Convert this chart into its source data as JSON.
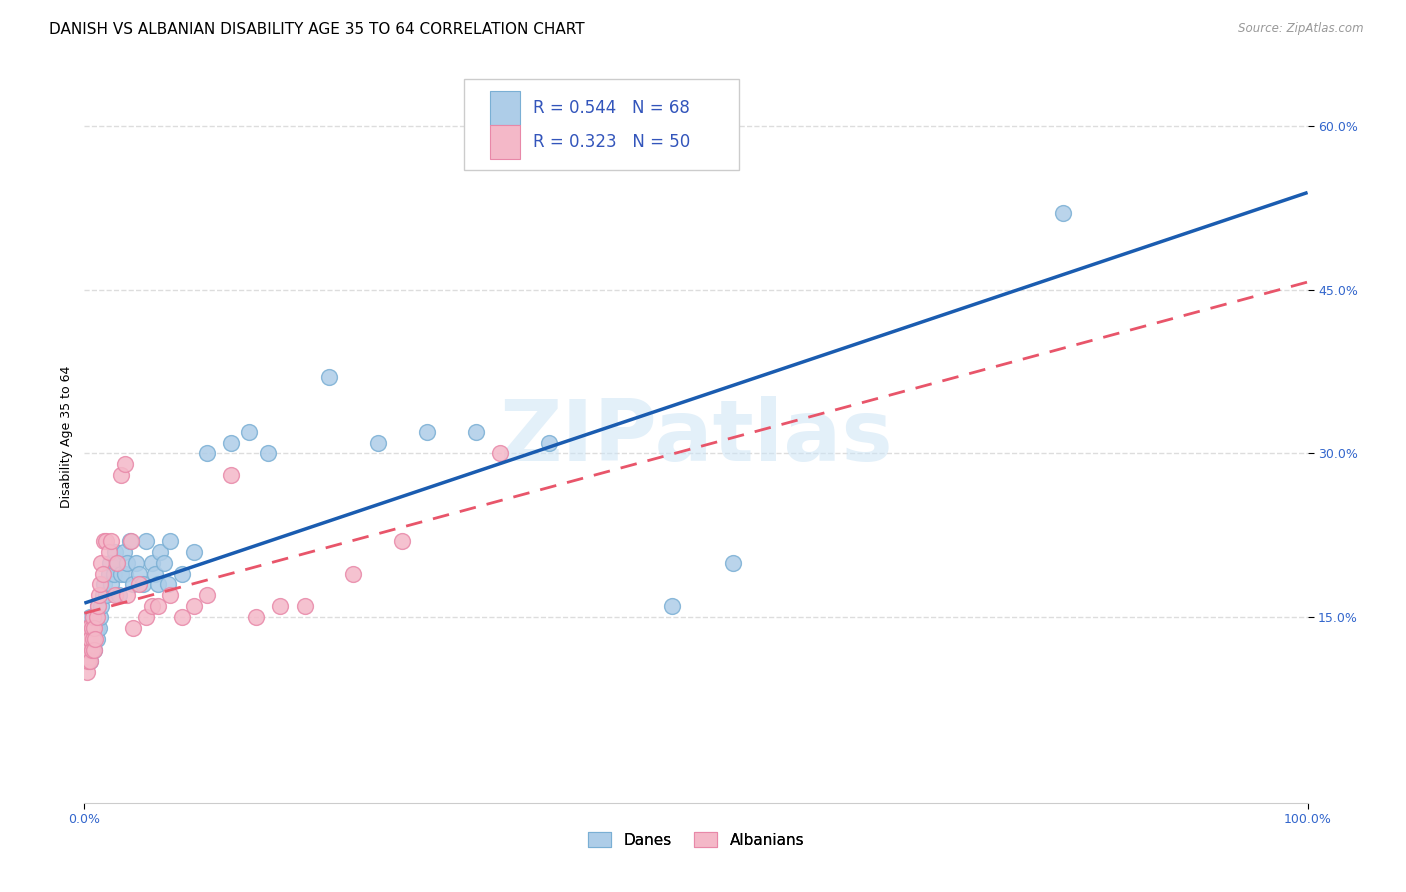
{
  "title": "DANISH VS ALBANIAN DISABILITY AGE 35 TO 64 CORRELATION CHART",
  "source": "Source: ZipAtlas.com",
  "ylabel": "Disability Age 35 to 64",
  "watermark": "ZIPatlas",
  "xlim": [
    0.0,
    1.0
  ],
  "ylim": [
    -0.02,
    0.65
  ],
  "ytick_values": [
    0.15,
    0.3,
    0.45,
    0.6
  ],
  "danes_color": "#aecde8",
  "danes_edge_color": "#7aafd4",
  "albanians_color": "#f4b8c8",
  "albanians_edge_color": "#e888a8",
  "danes_line_color": "#1a5cb0",
  "albanians_line_color": "#e8556a",
  "legend_danes_color": "#aecde8",
  "legend_albanians_color": "#f4b8c8",
  "R_danes": 0.544,
  "N_danes": 68,
  "R_albanians": 0.323,
  "N_albanians": 50,
  "danes_x": [
    0.001,
    0.001,
    0.002,
    0.002,
    0.002,
    0.003,
    0.003,
    0.003,
    0.004,
    0.004,
    0.004,
    0.005,
    0.005,
    0.005,
    0.006,
    0.006,
    0.007,
    0.007,
    0.008,
    0.008,
    0.009,
    0.01,
    0.01,
    0.011,
    0.012,
    0.013,
    0.014,
    0.015,
    0.016,
    0.018,
    0.02,
    0.021,
    0.022,
    0.024,
    0.025,
    0.027,
    0.028,
    0.03,
    0.032,
    0.033,
    0.035,
    0.037,
    0.04,
    0.042,
    0.045,
    0.048,
    0.05,
    0.055,
    0.058,
    0.06,
    0.062,
    0.065,
    0.068,
    0.07,
    0.08,
    0.09,
    0.1,
    0.12,
    0.135,
    0.15,
    0.2,
    0.24,
    0.28,
    0.32,
    0.38,
    0.48,
    0.53,
    0.8
  ],
  "danes_y": [
    0.12,
    0.14,
    0.13,
    0.12,
    0.14,
    0.11,
    0.13,
    0.14,
    0.12,
    0.13,
    0.14,
    0.11,
    0.13,
    0.15,
    0.12,
    0.14,
    0.13,
    0.15,
    0.12,
    0.14,
    0.15,
    0.13,
    0.14,
    0.16,
    0.14,
    0.15,
    0.16,
    0.17,
    0.18,
    0.17,
    0.19,
    0.2,
    0.18,
    0.19,
    0.21,
    0.2,
    0.17,
    0.19,
    0.21,
    0.19,
    0.2,
    0.22,
    0.18,
    0.2,
    0.19,
    0.18,
    0.22,
    0.2,
    0.19,
    0.18,
    0.21,
    0.2,
    0.18,
    0.22,
    0.19,
    0.21,
    0.3,
    0.31,
    0.32,
    0.3,
    0.37,
    0.31,
    0.32,
    0.32,
    0.31,
    0.16,
    0.2,
    0.52
  ],
  "albanians_x": [
    0.001,
    0.001,
    0.002,
    0.002,
    0.002,
    0.003,
    0.003,
    0.004,
    0.004,
    0.005,
    0.005,
    0.006,
    0.006,
    0.007,
    0.007,
    0.008,
    0.008,
    0.009,
    0.01,
    0.011,
    0.012,
    0.013,
    0.014,
    0.015,
    0.016,
    0.018,
    0.02,
    0.022,
    0.025,
    0.027,
    0.03,
    0.033,
    0.035,
    0.038,
    0.04,
    0.045,
    0.05,
    0.055,
    0.06,
    0.07,
    0.08,
    0.09,
    0.1,
    0.12,
    0.14,
    0.16,
    0.18,
    0.22,
    0.26,
    0.34
  ],
  "albanians_y": [
    0.11,
    0.13,
    0.1,
    0.12,
    0.14,
    0.11,
    0.13,
    0.12,
    0.14,
    0.11,
    0.13,
    0.12,
    0.14,
    0.13,
    0.15,
    0.12,
    0.14,
    0.13,
    0.15,
    0.16,
    0.17,
    0.18,
    0.2,
    0.19,
    0.22,
    0.22,
    0.21,
    0.22,
    0.17,
    0.2,
    0.28,
    0.29,
    0.17,
    0.22,
    0.14,
    0.18,
    0.15,
    0.16,
    0.16,
    0.17,
    0.15,
    0.16,
    0.17,
    0.28,
    0.15,
    0.16,
    0.16,
    0.19,
    0.22,
    0.3
  ],
  "background_color": "#ffffff",
  "grid_color": "#dddddd",
  "title_fontsize": 11,
  "axis_label_fontsize": 9,
  "tick_fontsize": 9,
  "legend_fontsize": 12
}
